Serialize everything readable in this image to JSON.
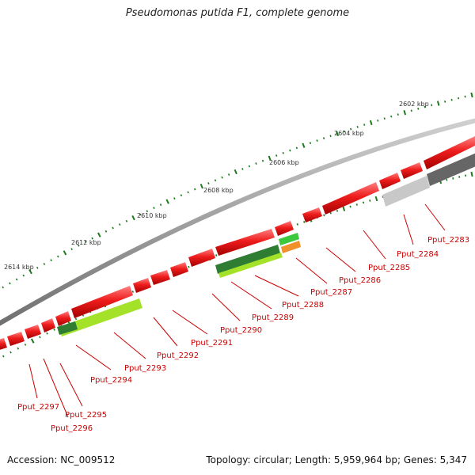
{
  "title": "Pseudomonas putida F1, complete genome",
  "footer": {
    "accession": "Accession: NC_009512",
    "summary": "Topology: circular; Length: 5,959,964 bp; Genes: 5,347"
  },
  "scale_ticks": [
    "2602 kbp",
    "2604 kbp",
    "2606 kbp",
    "2608 kbp",
    "2610 kbp",
    "2612 kbp",
    "2614 kbp"
  ],
  "genes": [
    "Pput_2283",
    "Pput_2284",
    "Pput_2285",
    "Pput_2286",
    "Pput_2287",
    "Pput_2288",
    "Pput_2289",
    "Pput_2290",
    "Pput_2291",
    "Pput_2292",
    "Pput_2293",
    "Pput_2294",
    "Pput_2295",
    "Pput_2296",
    "Pput_2297"
  ],
  "colors": {
    "gene": "#ee1c1c",
    "backbone": "#8c8c8c",
    "tick": "#1c7a1c",
    "label": "#cc0000",
    "feature_dark_green": "#2e7d32",
    "feature_light_green": "#a4e22a",
    "feature_orange": "#f0902a",
    "feature_dark_gray": "#666666",
    "feature_light_gray": "#c8c8c8"
  }
}
